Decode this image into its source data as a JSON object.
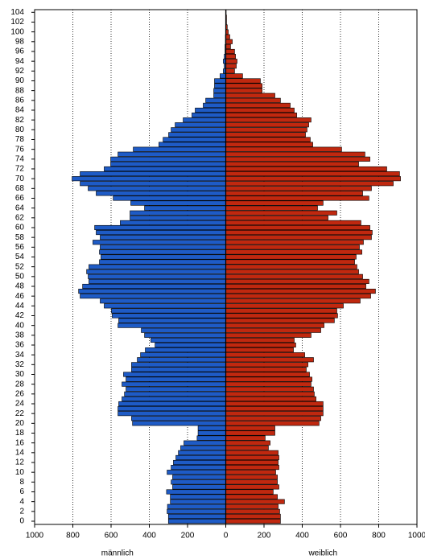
{
  "chart_data": {
    "type": "population-pyramid",
    "categories": [
      0,
      null,
      2,
      null,
      4,
      null,
      6,
      null,
      8,
      null,
      10,
      null,
      12,
      null,
      14,
      null,
      16,
      null,
      18,
      null,
      20,
      null,
      22,
      null,
      24,
      null,
      26,
      null,
      28,
      null,
      30,
      null,
      32,
      null,
      34,
      null,
      36,
      null,
      38,
      null,
      40,
      null,
      42,
      null,
      44,
      null,
      46,
      null,
      48,
      null,
      50,
      null,
      52,
      null,
      54,
      null,
      56,
      null,
      58,
      null,
      60,
      null,
      62,
      null,
      64,
      null,
      66,
      null,
      68,
      null,
      70,
      null,
      72,
      null,
      74,
      null,
      76,
      null,
      78,
      null,
      80,
      null,
      82,
      null,
      84,
      null,
      86,
      null,
      88,
      null,
      90,
      null,
      92,
      null,
      94,
      null,
      96,
      null,
      98,
      null,
      100,
      null,
      102,
      null,
      104
    ],
    "series": [
      {
        "name": "männlich",
        "side": "left",
        "color": "#1e5bc6",
        "values": [
          300,
          300,
          307,
          305,
          290,
          290,
          310,
          278,
          286,
          278,
          307,
          286,
          274,
          261,
          248,
          236,
          219,
          150,
          145,
          145,
          488,
          493,
          564,
          564,
          560,
          543,
          530,
          522,
          543,
          522,
          535,
          493,
          493,
          463,
          446,
          421,
          370,
          392,
          425,
          442,
          564,
          560,
          594,
          598,
          636,
          657,
          762,
          770,
          749,
          716,
          720,
          728,
          716,
          661,
          653,
          661,
          657,
          695,
          657,
          678,
          686,
          552,
          501,
          501,
          425,
          497,
          589,
          678,
          720,
          762,
          804,
          762,
          636,
          602,
          602,
          564,
          484,
          350,
          328,
          299,
          286,
          265,
          223,
          177,
          160,
          118,
          105,
          63,
          63,
          59,
          59,
          30,
          13,
          8,
          13,
          8,
          4,
          4,
          2,
          2,
          1,
          1,
          0,
          0,
          0
        ]
      },
      {
        "name": "weiblich",
        "side": "right",
        "color": "#c0280f",
        "values": [
          286,
          286,
          282,
          274,
          307,
          270,
          248,
          278,
          270,
          270,
          261,
          278,
          274,
          278,
          274,
          223,
          232,
          206,
          257,
          257,
          488,
          497,
          509,
          509,
          509,
          472,
          463,
          459,
          446,
          451,
          438,
          421,
          430,
          459,
          413,
          354,
          366,
          358,
          446,
          497,
          514,
          568,
          585,
          581,
          615,
          703,
          758,
          783,
          733,
          749,
          716,
          695,
          686,
          674,
          682,
          712,
          699,
          720,
          762,
          766,
          754,
          707,
          535,
          581,
          480,
          509,
          749,
          716,
          762,
          876,
          914,
          909,
          842,
          695,
          754,
          728,
          606,
          455,
          442,
          417,
          425,
          434,
          446,
          371,
          358,
          337,
          286,
          257,
          190,
          190,
          181,
          88,
          46,
          55,
          59,
          51,
          46,
          25,
          34,
          21,
          13,
          8,
          4,
          4,
          2
        ]
      }
    ],
    "xlim": [
      -1000,
      1000
    ],
    "xticks": [
      {
        "value": -1000,
        "label": "1000"
      },
      {
        "value": -800,
        "label": "800"
      },
      {
        "value": -600,
        "label": "600"
      },
      {
        "value": -400,
        "label": "400"
      },
      {
        "value": -200,
        "label": "200"
      },
      0,
      200,
      400,
      600,
      800,
      1000
    ],
    "grid": true
  }
}
